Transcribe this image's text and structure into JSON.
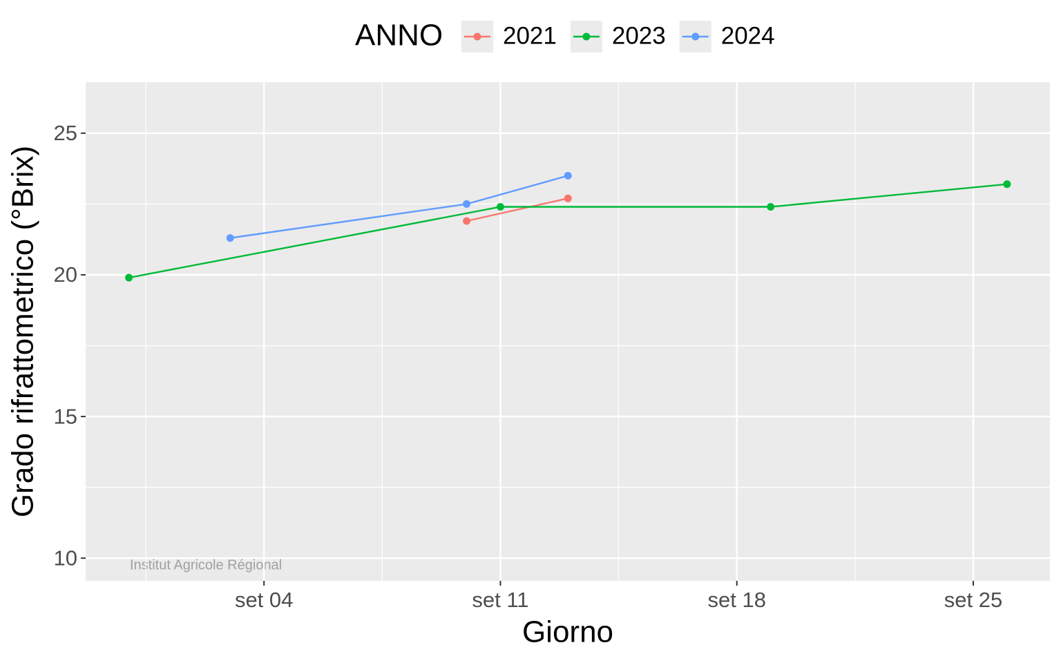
{
  "chart_data": {
    "type": "line",
    "x_label": "Giorno",
    "y_label": "Grado rifrattometrico (°Brix)",
    "legend_title": "ANNO",
    "legend_position": "top",
    "annotation": "Institut Agricole Régional",
    "grid": true,
    "xlim": [
      -1.28,
      27.27
    ],
    "xticks": [
      {
        "value": 4,
        "label": "set 04"
      },
      {
        "value": 11,
        "label": "set 11"
      },
      {
        "value": 18,
        "label": "set 18"
      },
      {
        "value": 25,
        "label": "set 25"
      }
    ],
    "ylim": [
      9.2,
      26.8
    ],
    "yticks": [
      10,
      15,
      20,
      25
    ],
    "series": [
      {
        "name": "2021",
        "color": "#f8766d",
        "x": [
          10,
          13
        ],
        "values": [
          21.9,
          22.7
        ]
      },
      {
        "name": "2023",
        "color": "#00ba38",
        "x": [
          0,
          11,
          19,
          26
        ],
        "values": [
          19.9,
          22.4,
          22.4,
          23.2
        ]
      },
      {
        "name": "2024",
        "color": "#619cff",
        "x": [
          3,
          10,
          13
        ],
        "values": [
          21.3,
          22.5,
          23.5
        ]
      }
    ]
  }
}
